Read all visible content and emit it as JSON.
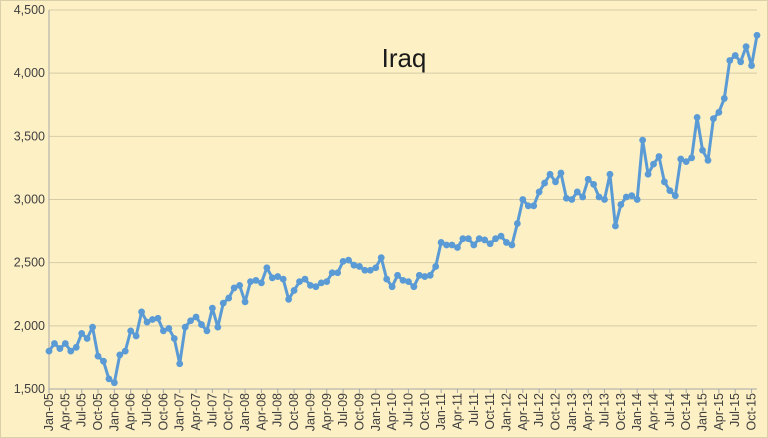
{
  "chart_data": {
    "type": "line",
    "title": "Iraq",
    "xlabel": "",
    "ylabel": "",
    "ylim": [
      1500,
      4500
    ],
    "yticks": [
      1500,
      2000,
      2500,
      3000,
      3500,
      4000,
      4500
    ],
    "ytick_labels": [
      "1,500",
      "2,000",
      "2,500",
      "3,000",
      "3,500",
      "4,000",
      "4,500"
    ],
    "x_labels": [
      "Jan-05",
      "Apr-05",
      "Jul-05",
      "Oct-05",
      "Jan-06",
      "Apr-06",
      "Jul-06",
      "Oct-06",
      "Jan-07",
      "Apr-07",
      "Jul-07",
      "Oct-07",
      "Jan-08",
      "Apr-08",
      "Jul-08",
      "Oct-08",
      "Jan-09",
      "Apr-09",
      "Jul-09",
      "Oct-09",
      "Jan-10",
      "Apr-10",
      "Jul-10",
      "Oct-10",
      "Jan-11",
      "Apr-11",
      "Jul-11",
      "Oct-11",
      "Jan-12",
      "Apr-12",
      "Jul-12",
      "Oct-12",
      "Jan-13",
      "Apr-13",
      "Jul-13",
      "Oct-13",
      "Jan-14",
      "Apr-14",
      "Jul-14",
      "Oct-14",
      "Jan-15",
      "Apr-15",
      "Jul-15",
      "Oct-15"
    ],
    "series_color": "#5b9bd5",
    "grid": "horizontal",
    "legend": "none",
    "series": [
      {
        "values": [
          1800,
          1860,
          1820,
          1860,
          1800,
          1830,
          1940,
          1900,
          1990,
          1760,
          1720,
          1580,
          1550,
          1770,
          1800,
          1960,
          1920,
          2110,
          2030,
          2050,
          2060,
          1960,
          1980,
          1900,
          1700,
          1990,
          2040,
          2070,
          2010,
          1960,
          2140,
          1990,
          2180,
          2220,
          2300,
          2320,
          2190,
          2350,
          2360,
          2340,
          2460,
          2380,
          2390,
          2370,
          2210,
          2280,
          2350,
          2370,
          2320,
          2310,
          2340,
          2350,
          2420,
          2420,
          2510,
          2520,
          2480,
          2470,
          2440,
          2440,
          2460,
          2540,
          2370,
          2310,
          2400,
          2360,
          2350,
          2310,
          2400,
          2390,
          2400,
          2470,
          2660,
          2640,
          2640,
          2620,
          2690,
          2690,
          2640,
          2690,
          2680,
          2650,
          2690,
          2710,
          2660,
          2640,
          2810,
          3000,
          2950,
          2950,
          3060,
          3130,
          3200,
          3140,
          3210,
          3010,
          3000,
          3060,
          3020,
          3160,
          3120,
          3020,
          3000,
          3200,
          2790,
          2960,
          3020,
          3030,
          3000,
          3470,
          3200,
          3280,
          3340,
          3140,
          3070,
          3030,
          3320,
          3300,
          3330,
          3650,
          3390,
          3310,
          3640,
          3690,
          3800,
          4100,
          4140,
          4090,
          4210,
          4060,
          4300
        ]
      }
    ]
  }
}
